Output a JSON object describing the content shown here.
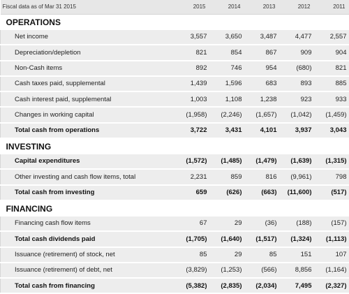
{
  "header": {
    "label": "Fiscal data as of Mar 31 2015",
    "years": [
      "2015",
      "2014",
      "2013",
      "2012",
      "2011"
    ]
  },
  "sections": [
    {
      "title": "OPERATIONS",
      "rows": [
        {
          "label": "Net income",
          "bold": false,
          "values": [
            "3,557",
            "3,650",
            "3,487",
            "4,477",
            "2,557"
          ]
        },
        {
          "label": "Depreciation/depletion",
          "bold": false,
          "values": [
            "821",
            "854",
            "867",
            "909",
            "904"
          ]
        },
        {
          "label": "Non-Cash items",
          "bold": false,
          "values": [
            "892",
            "746",
            "954",
            "(680)",
            "821"
          ]
        },
        {
          "label": "Cash taxes paid, supplemental",
          "bold": false,
          "values": [
            "1,439",
            "1,596",
            "683",
            "893",
            "885"
          ]
        },
        {
          "label": "Cash interest paid, supplemental",
          "bold": false,
          "values": [
            "1,003",
            "1,108",
            "1,238",
            "923",
            "933"
          ]
        },
        {
          "label": "Changes in working capital",
          "bold": false,
          "values": [
            "(1,958)",
            "(2,246)",
            "(1,657)",
            "(1,042)",
            "(1,459)"
          ]
        },
        {
          "label": "Total cash from operations",
          "bold": true,
          "values": [
            "3,722",
            "3,431",
            "4,101",
            "3,937",
            "3,043"
          ]
        }
      ]
    },
    {
      "title": "INVESTING",
      "rows": [
        {
          "label": "Capital expenditures",
          "bold": true,
          "values": [
            "(1,572)",
            "(1,485)",
            "(1,479)",
            "(1,639)",
            "(1,315)"
          ]
        },
        {
          "label": "Other investing and cash flow items, total",
          "bold": false,
          "values": [
            "2,231",
            "859",
            "816",
            "(9,961)",
            "798"
          ]
        },
        {
          "label": "Total cash from investing",
          "bold": true,
          "values": [
            "659",
            "(626)",
            "(663)",
            "(11,600)",
            "(517)"
          ]
        }
      ]
    },
    {
      "title": "FINANCING",
      "rows": [
        {
          "label": "Financing cash flow items",
          "bold": false,
          "values": [
            "67",
            "29",
            "(36)",
            "(188)",
            "(157)"
          ]
        },
        {
          "label": "Total cash dividends paid",
          "bold": true,
          "values": [
            "(1,705)",
            "(1,640)",
            "(1,517)",
            "(1,324)",
            "(1,113)"
          ]
        },
        {
          "label": "Issuance (retirement) of stock, net",
          "bold": false,
          "values": [
            "85",
            "29",
            "85",
            "151",
            "107"
          ]
        },
        {
          "label": "Issuance (retirement) of debt, net",
          "bold": false,
          "values": [
            "(3,829)",
            "(1,253)",
            "(566)",
            "8,856",
            "(1,164)"
          ]
        },
        {
          "label": "Total cash from financing",
          "bold": true,
          "values": [
            "(5,382)",
            "(2,835)",
            "(2,034)",
            "7,495",
            "(2,327)"
          ]
        }
      ]
    }
  ]
}
